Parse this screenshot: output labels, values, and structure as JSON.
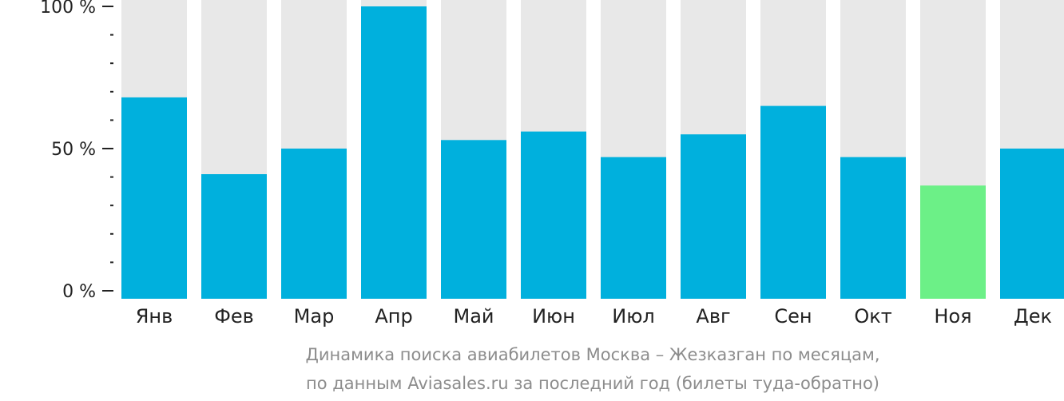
{
  "chart_data": {
    "type": "bar",
    "categories": [
      "Янв",
      "Фев",
      "Мар",
      "Апр",
      "Май",
      "Июн",
      "Июл",
      "Авг",
      "Сен",
      "Окт",
      "Ноя",
      "Дек"
    ],
    "values": [
      68,
      41,
      50,
      100,
      53,
      56,
      47,
      55,
      65,
      47,
      37,
      50
    ],
    "ylim": [
      0,
      100
    ],
    "yticks": [
      {
        "value": 0,
        "label": "0 %"
      },
      {
        "value": 50,
        "label": "50 %"
      },
      {
        "value": 100,
        "label": "100 %"
      }
    ],
    "highlight_index": 10,
    "colors": {
      "bar": "#00b0dd",
      "highlight": "#6cf087",
      "background_bar": "#e8e8e8"
    },
    "caption": [
      "Динамика поиска авиабилетов Москва – Жезказган по месяцам,",
      "по данным Aviasales.ru за последний год (билеты туда-обратно)"
    ]
  }
}
